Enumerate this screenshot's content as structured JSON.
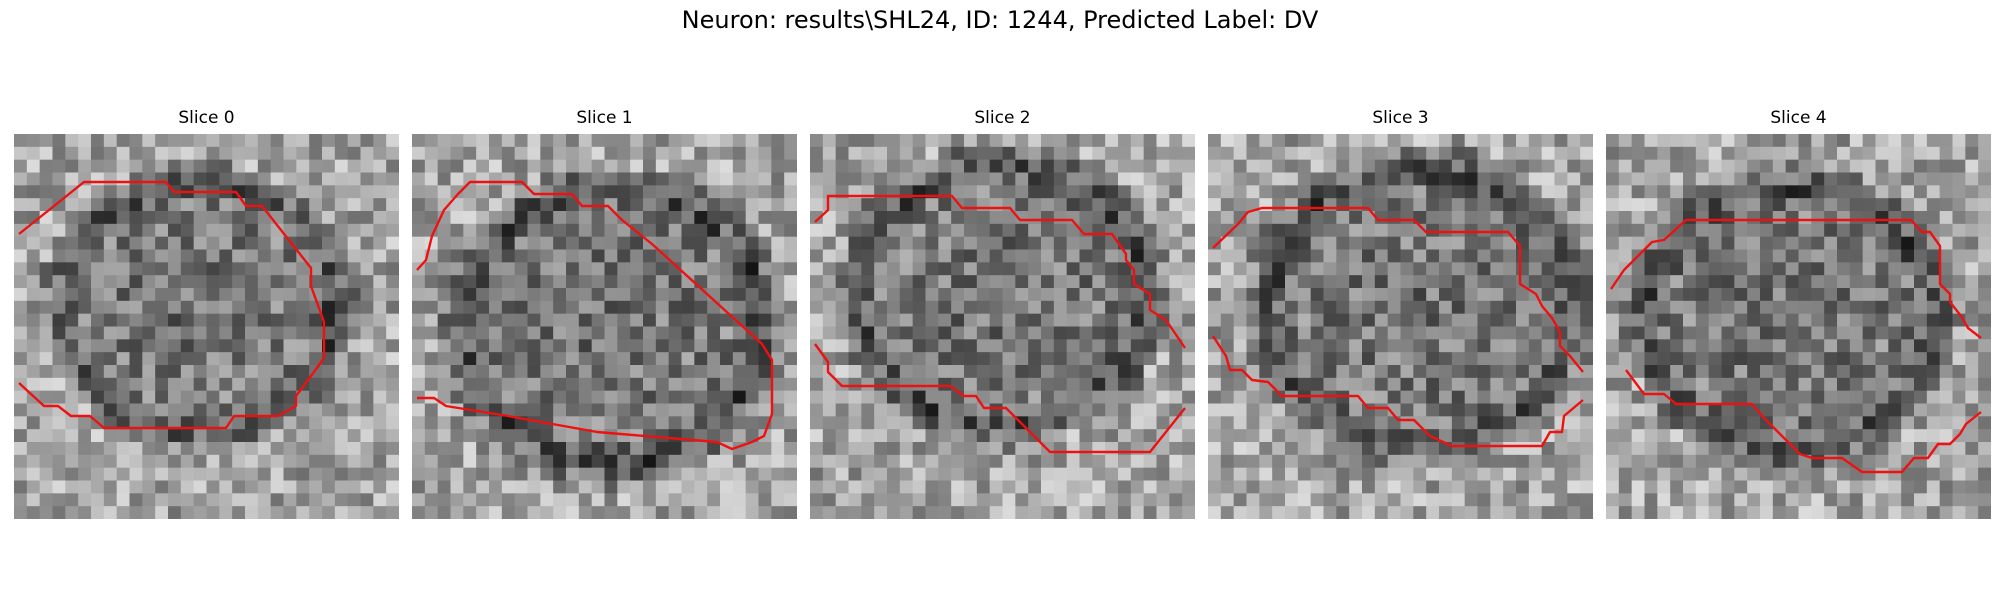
{
  "figure": {
    "title": "Neuron: results\\SHL24, ID: 1244, Predicted Label: DV",
    "contour_color": "#ee1111",
    "colormap": "gray",
    "grid": [
      30,
      30
    ]
  },
  "slices": [
    {
      "title": "Slice 0",
      "seed": 11
    },
    {
      "title": "Slice 1",
      "seed": 23
    },
    {
      "title": "Slice 2",
      "seed": 37
    },
    {
      "title": "Slice 3",
      "seed": 41
    },
    {
      "title": "Slice 4",
      "seed": 59
    }
  ]
}
